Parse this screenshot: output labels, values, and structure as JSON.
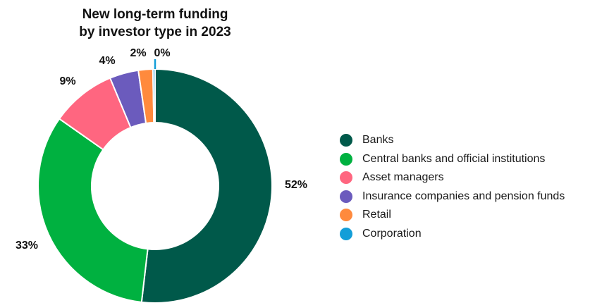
{
  "chart_data": {
    "type": "pie",
    "variant": "donut",
    "title_lines": [
      "New long-term funding",
      "by investor type in 2023"
    ],
    "categories": [
      "Banks",
      "Central banks and official institutions",
      "Asset managers",
      "Insurance companies and pension funds",
      "Retail",
      "Corporation"
    ],
    "values": [
      52,
      33,
      9,
      4,
      2,
      0.3
    ],
    "value_labels": [
      "52%",
      "33%",
      "9%",
      "4%",
      "2%",
      "0%"
    ],
    "colors": [
      "#00594a",
      "#00b140",
      "#ff6680",
      "#6b5bbd",
      "#ff8a3d",
      "#139ed8"
    ],
    "legend_position": "right"
  }
}
